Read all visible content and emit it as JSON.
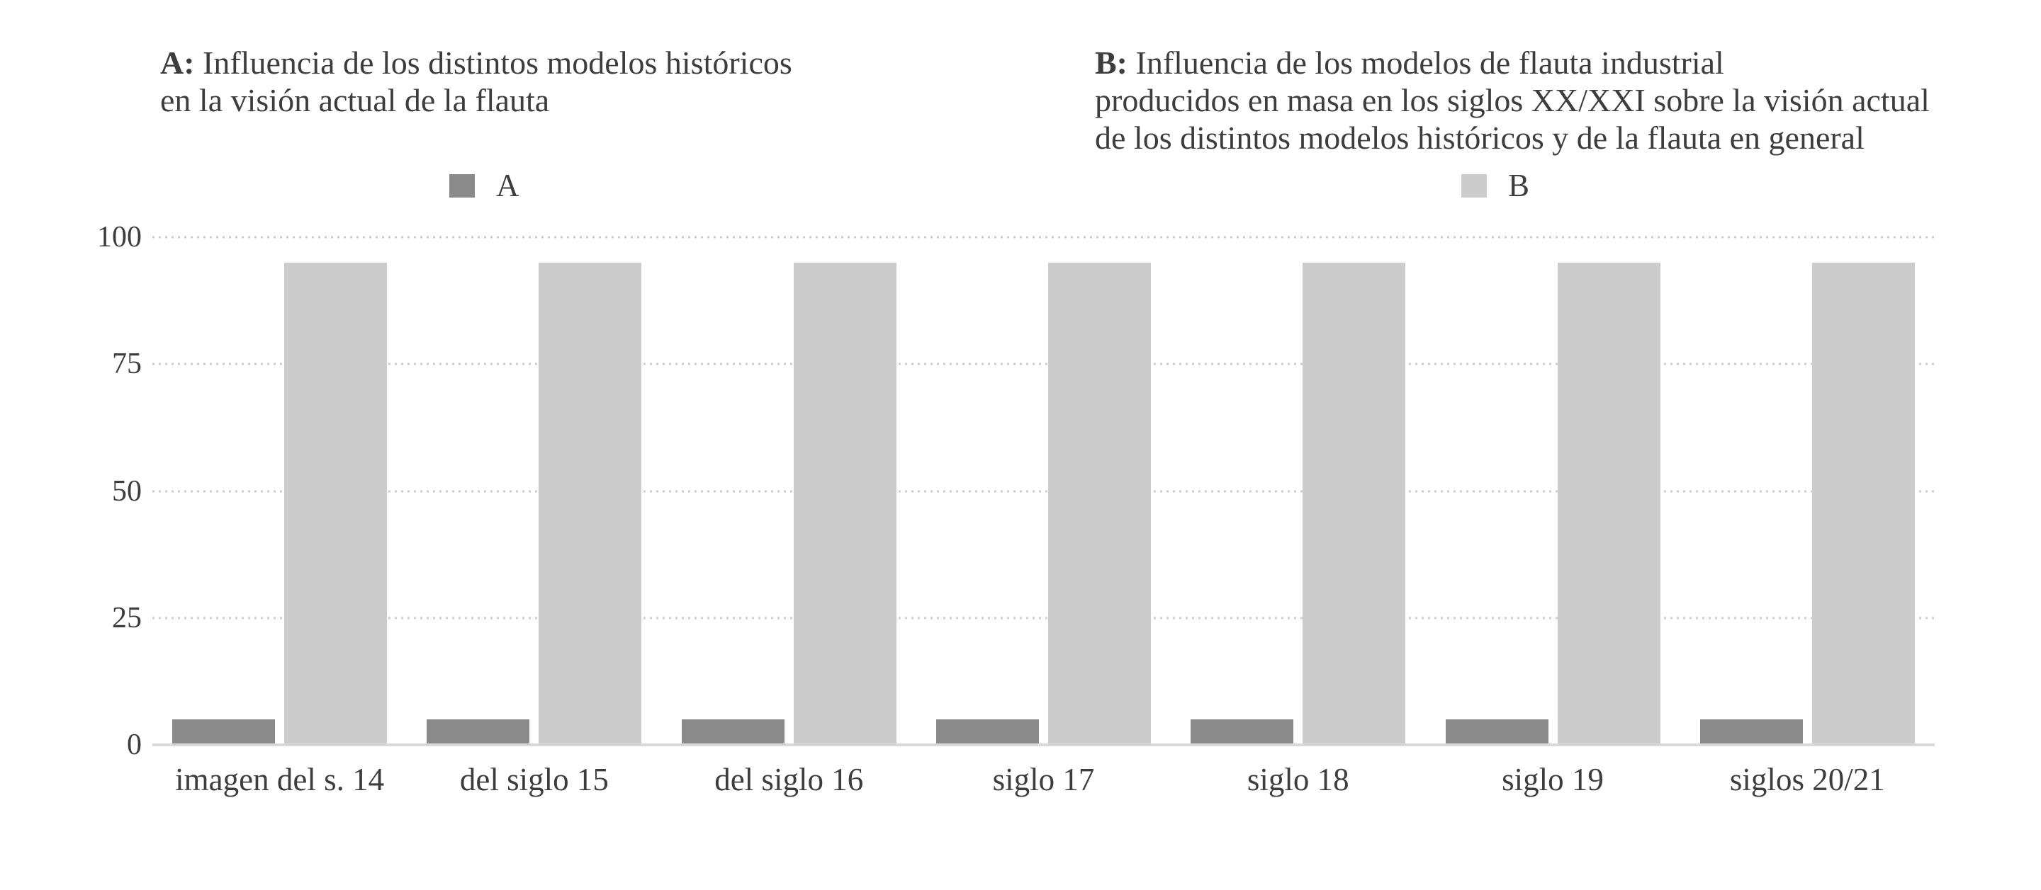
{
  "page": {
    "background_color": "#ffffff",
    "text_color": "#3d3d3d"
  },
  "panels": {
    "a": {
      "prefix": "A:",
      "title_lines": [
        "Influencia de los distintos modelos históricos",
        "en la visión actual de la flauta"
      ],
      "legend_label": "A"
    },
    "b": {
      "prefix": "B:",
      "title_lines": [
        "Influencia de los modelos de flauta industrial",
        "producidos en masa en los siglos XX/XXI sobre la visión actual",
        "de los distintos modelos históricos y de la flauta en general"
      ],
      "legend_label": "B"
    }
  },
  "chart_data": {
    "type": "bar",
    "categories": [
      "imagen del s. 14",
      "del siglo 15",
      "del siglo 16",
      "siglo 17",
      "siglo 18",
      "siglo 19",
      "siglos 20/21"
    ],
    "series": [
      {
        "name": "A",
        "color": "#8a8a8a",
        "values": [
          5,
          5,
          5,
          5,
          5,
          5,
          5
        ]
      },
      {
        "name": "B",
        "color": "#cccccc",
        "values": [
          95,
          95,
          95,
          95,
          95,
          95,
          95
        ]
      }
    ],
    "ylim": [
      0,
      100
    ],
    "y_ticks": [
      0,
      25,
      50,
      75,
      100
    ],
    "grid": "horizontal dotted",
    "gridline_color": "#cccccc",
    "baseline_color": "#d9d9d9",
    "legend_position": "top, one legend under each panel title"
  }
}
